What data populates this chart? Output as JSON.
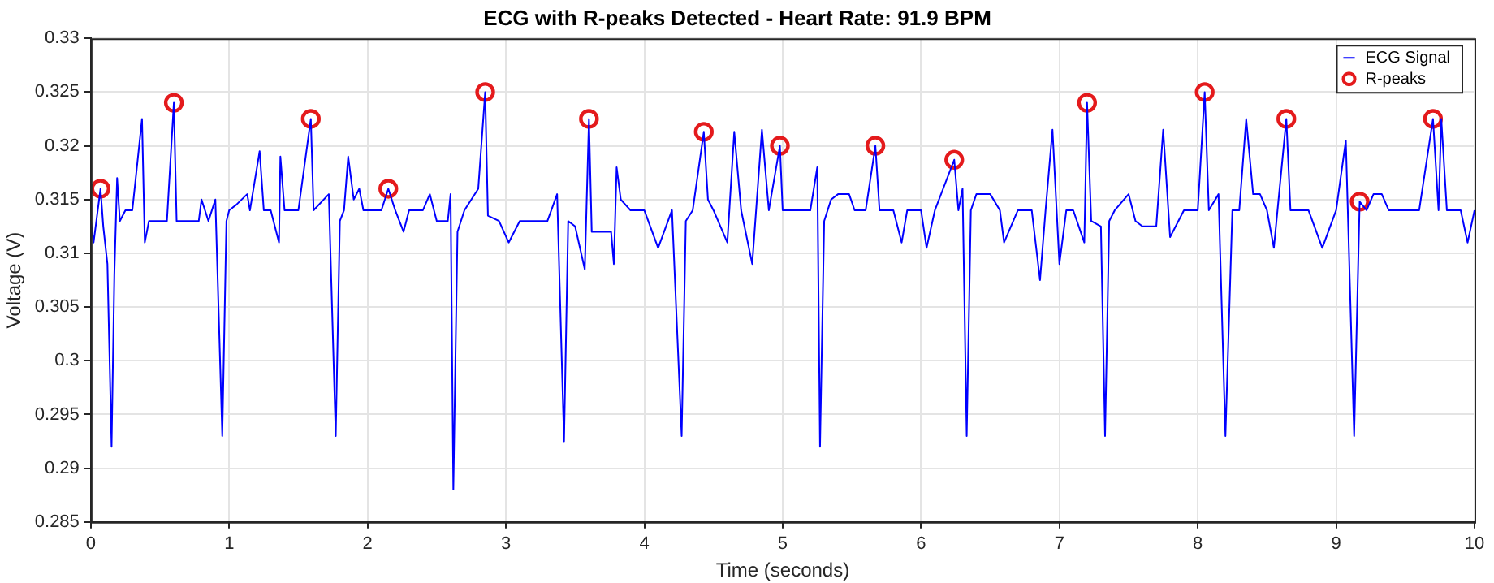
{
  "chart_data": {
    "type": "line",
    "title": "ECG with R-peaks Detected - Heart Rate: 91.9 BPM",
    "xlabel": "Time (seconds)",
    "ylabel": "Voltage (V)",
    "xlim": [
      0,
      10
    ],
    "xticks": [
      0,
      1,
      2,
      3,
      4,
      5,
      6,
      7,
      8,
      9,
      10
    ],
    "ylim": [
      0.285,
      0.33
    ],
    "yticks": [
      0.285,
      0.29,
      0.295,
      0.3,
      0.305,
      0.31,
      0.315,
      0.32,
      0.325,
      0.33
    ],
    "grid": true,
    "legend": "top right",
    "series": [
      {
        "name": "ECG Signal",
        "type": "line",
        "color": "#0000ff",
        "marker": "none",
        "line_style": "solid",
        "x": [
          0,
          0.02,
          0.05,
          0.07,
          0.09,
          0.12,
          0.15,
          0.17,
          0.19,
          0.21,
          0.25,
          0.3,
          0.37,
          0.39,
          0.42,
          0.5,
          0.55,
          0.6,
          0.62,
          0.7,
          0.78,
          0.8,
          0.85,
          0.9,
          0.95,
          0.98,
          1.0,
          1.05,
          1.13,
          1.15,
          1.22,
          1.25,
          1.3,
          1.36,
          1.37,
          1.4,
          1.5,
          1.59,
          1.61,
          1.72,
          1.77,
          1.8,
          1.83,
          1.86,
          1.9,
          1.94,
          1.97,
          2.1,
          2.15,
          2.2,
          2.26,
          2.3,
          2.4,
          2.45,
          2.5,
          2.58,
          2.6,
          2.62,
          2.65,
          2.7,
          2.75,
          2.8,
          2.85,
          2.87,
          2.95,
          3.02,
          3.1,
          3.2,
          3.3,
          3.37,
          3.42,
          3.45,
          3.5,
          3.57,
          3.6,
          3.62,
          3.7,
          3.76,
          3.78,
          3.8,
          3.83,
          3.9,
          4.0,
          4.1,
          4.2,
          4.27,
          4.3,
          4.35,
          4.43,
          4.46,
          4.5,
          4.6,
          4.65,
          4.7,
          4.78,
          4.85,
          4.9,
          4.98,
          5.0,
          5.1,
          5.2,
          5.25,
          5.27,
          5.3,
          5.35,
          5.4,
          5.48,
          5.52,
          5.6,
          5.67,
          5.7,
          5.8,
          5.86,
          5.9,
          6.0,
          6.04,
          6.1,
          6.24,
          6.27,
          6.3,
          6.33,
          6.36,
          6.4,
          6.5,
          6.57,
          6.6,
          6.7,
          6.8,
          6.86,
          6.9,
          6.95,
          7.0,
          7.05,
          7.1,
          7.18,
          7.2,
          7.23,
          7.3,
          7.33,
          7.36,
          7.4,
          7.5,
          7.55,
          7.6,
          7.7,
          7.75,
          7.8,
          7.9,
          8.0,
          8.05,
          8.08,
          8.15,
          8.2,
          8.25,
          8.3,
          8.35,
          8.4,
          8.45,
          8.5,
          8.55,
          8.64,
          8.67,
          8.8,
          8.9,
          9.0,
          9.07,
          9.13,
          9.17,
          9.22,
          9.27,
          9.33,
          9.38,
          9.45,
          9.6,
          9.7,
          9.74,
          9.76,
          9.8,
          9.9,
          9.95,
          10
        ],
        "values": [
          0.313,
          0.311,
          0.314,
          0.316,
          0.3125,
          0.309,
          0.292,
          0.308,
          0.317,
          0.313,
          0.314,
          0.314,
          0.3225,
          0.311,
          0.313,
          0.313,
          0.313,
          0.324,
          0.313,
          0.313,
          0.313,
          0.315,
          0.313,
          0.315,
          0.293,
          0.313,
          0.314,
          0.3145,
          0.3155,
          0.314,
          0.3195,
          0.314,
          0.314,
          0.311,
          0.319,
          0.314,
          0.314,
          0.3225,
          0.314,
          0.3155,
          0.293,
          0.313,
          0.314,
          0.319,
          0.315,
          0.316,
          0.314,
          0.314,
          0.316,
          0.314,
          0.312,
          0.314,
          0.314,
          0.3155,
          0.313,
          0.313,
          0.3155,
          0.288,
          0.312,
          0.314,
          0.315,
          0.316,
          0.325,
          0.3135,
          0.313,
          0.311,
          0.313,
          0.313,
          0.313,
          0.3155,
          0.2925,
          0.313,
          0.3125,
          0.3085,
          0.3225,
          0.312,
          0.312,
          0.312,
          0.309,
          0.318,
          0.315,
          0.314,
          0.314,
          0.3105,
          0.314,
          0.293,
          0.313,
          0.314,
          0.3213,
          0.315,
          0.314,
          0.311,
          0.3213,
          0.314,
          0.309,
          0.3215,
          0.314,
          0.32,
          0.314,
          0.314,
          0.314,
          0.318,
          0.292,
          0.313,
          0.315,
          0.3155,
          0.3155,
          0.314,
          0.314,
          0.32,
          0.314,
          0.314,
          0.311,
          0.314,
          0.314,
          0.3105,
          0.314,
          0.3187,
          0.314,
          0.316,
          0.293,
          0.314,
          0.3155,
          0.3155,
          0.314,
          0.311,
          0.314,
          0.314,
          0.3075,
          0.314,
          0.3215,
          0.309,
          0.314,
          0.314,
          0.311,
          0.324,
          0.313,
          0.3125,
          0.293,
          0.313,
          0.314,
          0.3155,
          0.313,
          0.3125,
          0.3125,
          0.3215,
          0.3115,
          0.314,
          0.314,
          0.325,
          0.314,
          0.3155,
          0.293,
          0.314,
          0.314,
          0.3225,
          0.3155,
          0.3155,
          0.314,
          0.3105,
          0.3225,
          0.314,
          0.314,
          0.3105,
          0.314,
          0.3205,
          0.293,
          0.3148,
          0.314,
          0.3155,
          0.3155,
          0.314,
          0.314,
          0.314,
          0.3225,
          0.314,
          0.3225,
          0.314,
          0.314,
          0.311,
          0.314
        ]
      },
      {
        "name": "R-peaks",
        "type": "scatter",
        "color": "#e41a1c",
        "marker": "circle",
        "x": [
          0.07,
          0.6,
          1.59,
          2.15,
          2.85,
          3.6,
          4.43,
          4.98,
          5.67,
          6.24,
          7.2,
          8.05,
          8.64,
          9.17,
          9.7
        ],
        "values": [
          0.316,
          0.324,
          0.3225,
          0.316,
          0.325,
          0.3225,
          0.3213,
          0.32,
          0.32,
          0.3187,
          0.324,
          0.325,
          0.3225,
          0.3148,
          0.3225
        ]
      }
    ]
  }
}
